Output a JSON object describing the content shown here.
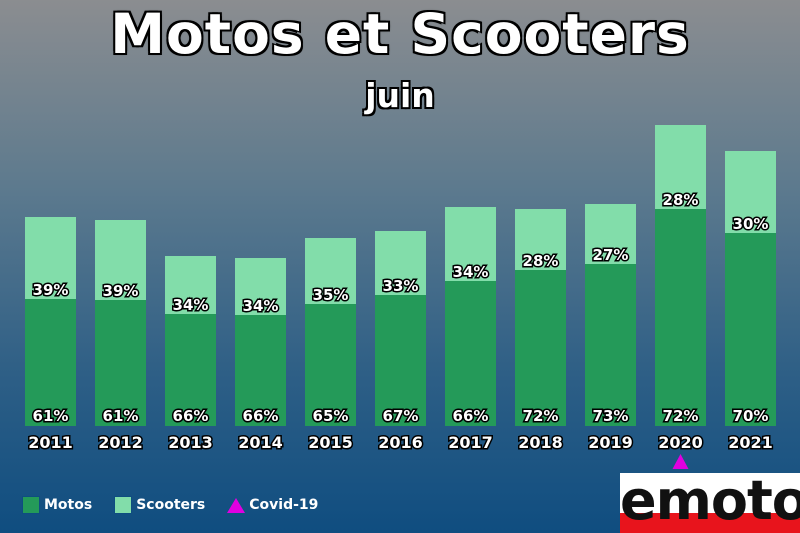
{
  "title": "Motos et Scooters",
  "subtitle": "juin",
  "colors": {
    "motos": "#249a59",
    "scooters": "#82ddaa",
    "covid": "#e000e0"
  },
  "legend": {
    "motos": "Motos",
    "scooters": "Scooters",
    "covid": "Covid-19"
  },
  "logo": {
    "text": "emoto"
  },
  "chart_data": {
    "type": "bar",
    "stacked": true,
    "categories": [
      "2011",
      "2012",
      "2013",
      "2014",
      "2015",
      "2016",
      "2017",
      "2018",
      "2019",
      "2020",
      "2021"
    ],
    "totals": [
      209,
      206,
      170,
      168,
      188,
      195,
      219,
      217,
      222,
      301,
      275
    ],
    "series": [
      {
        "name": "Motos",
        "percent_labels": [
          "61%",
          "61%",
          "66%",
          "66%",
          "65%",
          "67%",
          "66%",
          "72%",
          "73%",
          "72%",
          "70%"
        ],
        "values": [
          127,
          126,
          112,
          111,
          122,
          131,
          145,
          156,
          162,
          217,
          193
        ]
      },
      {
        "name": "Scooters",
        "percent_labels": [
          "39%",
          "39%",
          "34%",
          "34%",
          "35%",
          "33%",
          "34%",
          "28%",
          "27%",
          "28%",
          "30%"
        ],
        "values": [
          82,
          80,
          58,
          57,
          66,
          64,
          74,
          61,
          60,
          84,
          82
        ]
      }
    ],
    "annotation": {
      "category": "2020",
      "marker": "triangle",
      "label": "Covid-19"
    },
    "grid": false,
    "legend_position": "bottom-left"
  }
}
